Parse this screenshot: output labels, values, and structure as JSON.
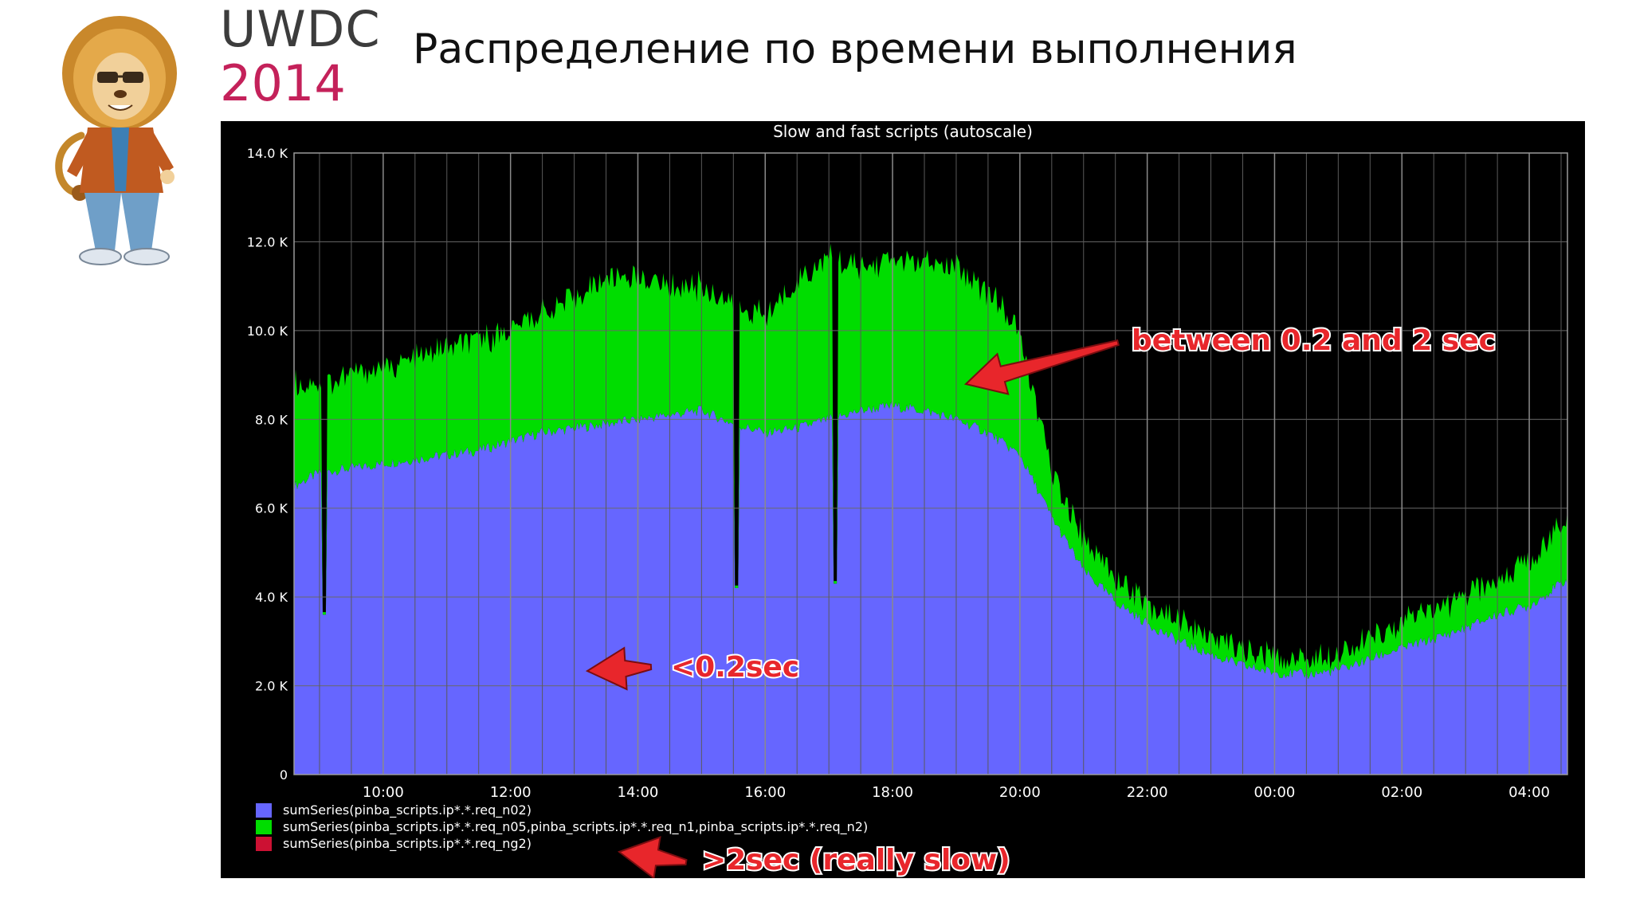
{
  "logo": {
    "line1": "UWDC",
    "line2": "2014"
  },
  "slide_title": "Распределение по времени выполнения",
  "chart_data": {
    "type": "area",
    "title": "Slow and fast scripts (autoscale)",
    "stacked": true,
    "ylim": [
      0,
      14000
    ],
    "y_ticks": [
      0,
      2000,
      4000,
      6000,
      8000,
      10000,
      12000,
      14000
    ],
    "y_tick_labels": [
      "0",
      "2.0 K",
      "4.0 K",
      "6.0 K",
      "8.0 K",
      "10.0 K",
      "12.0 K",
      "14.0 K"
    ],
    "x_range_hours": [
      8.6,
      28.6
    ],
    "x_ticks": [
      10,
      12,
      14,
      16,
      18,
      20,
      22,
      24,
      26,
      28
    ],
    "x_tick_labels": [
      "10:00",
      "12:00",
      "14:00",
      "16:00",
      "18:00",
      "20:00",
      "22:00",
      "00:00",
      "02:00",
      "04:00"
    ],
    "grid": true,
    "legend_position": "bottom-left",
    "colors": {
      "background": "#000000",
      "grid": "#6a6a6a",
      "text": "#ffffff",
      "annotation": "#e8262b"
    },
    "x": [
      8.6,
      9.0,
      9.5,
      10.0,
      10.5,
      11.0,
      11.5,
      12.0,
      12.5,
      13.0,
      13.5,
      14.0,
      14.5,
      15.0,
      15.5,
      16.0,
      16.5,
      17.0,
      17.5,
      18.0,
      18.5,
      19.0,
      19.5,
      20.0,
      20.5,
      21.0,
      21.5,
      22.0,
      22.5,
      23.0,
      23.5,
      24.0,
      24.5,
      25.0,
      25.5,
      26.0,
      26.5,
      27.0,
      27.5,
      28.0,
      28.6
    ],
    "series": [
      {
        "name": "sumSeries(pinba_scripts.ip*.*.req_n02)",
        "color": "#6666ff",
        "values": [
          6500,
          6800,
          6900,
          7000,
          7100,
          7200,
          7300,
          7500,
          7700,
          7800,
          7900,
          8000,
          8100,
          8200,
          7900,
          7700,
          7800,
          8000,
          8200,
          8300,
          8200,
          8000,
          7700,
          7200,
          5800,
          4600,
          3900,
          3400,
          3000,
          2700,
          2450,
          2300,
          2250,
          2350,
          2600,
          2850,
          3050,
          3300,
          3600,
          3800,
          4400
        ]
      },
      {
        "name": "sumSeries(pinba_scripts.ip*.*.req_n05,pinba_scripts.ip*.*.req_n1,pinba_scripts.ip*.*.req_n2)",
        "color": "#00dd00",
        "values": [
          2300,
          2000,
          2100,
          2200,
          2300,
          2400,
          2500,
          2500,
          2700,
          2900,
          3300,
          3200,
          2900,
          2800,
          2700,
          2600,
          3300,
          3600,
          3200,
          3300,
          3300,
          3400,
          3200,
          2700,
          1000,
          700,
          600,
          500,
          450,
          400,
          350,
          350,
          350,
          400,
          450,
          550,
          650,
          700,
          800,
          1000,
          1400
        ]
      },
      {
        "name": "sumSeries(pinba_scripts.ip*.*.req_ng2)",
        "color": "#cc1133",
        "values": [
          0,
          0,
          0,
          0,
          0,
          0,
          0,
          0,
          0,
          0,
          0,
          0,
          0,
          0,
          0,
          0,
          0,
          0,
          0,
          0,
          0,
          0,
          0,
          0,
          0,
          0,
          0,
          0,
          0,
          0,
          0,
          0,
          0,
          0,
          0,
          0,
          0,
          0,
          0,
          0,
          0
        ]
      }
    ],
    "dips": [
      {
        "x": 9.08,
        "value": 3600
      },
      {
        "x": 15.55,
        "value": 4200
      },
      {
        "x": 17.1,
        "value": 4300
      }
    ],
    "annotations": [
      {
        "text": "between 0.2 and 2 sec",
        "target_series": 1
      },
      {
        "text": "<0.2sec",
        "target_series": 0
      },
      {
        "text": ">2sec (really slow)",
        "target_series": 2
      }
    ]
  }
}
